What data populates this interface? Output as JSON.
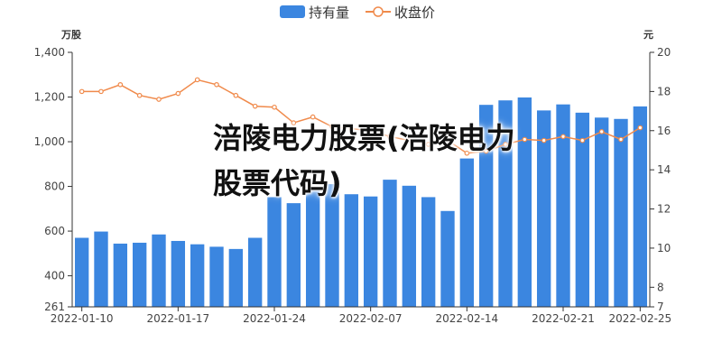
{
  "overlay_title": "涪陵电力股票(涪陵电力股票代码)",
  "chart_data": {
    "type": "bar",
    "legend_position": "top-center",
    "series": [
      {
        "name": "持有量",
        "type": "bar",
        "axis": "left",
        "color": "#3b86e0"
      },
      {
        "name": "收盘价",
        "type": "line",
        "axis": "right",
        "color": "#f08a4b"
      }
    ],
    "left_axis": {
      "unit": "万股",
      "min": 261,
      "max": 1400,
      "ticks": [
        261,
        400,
        600,
        800,
        1000,
        1200,
        1400
      ],
      "tick_labels": [
        "261",
        "400",
        "600",
        "800",
        "1,000",
        "1,200",
        "1,400"
      ]
    },
    "right_axis": {
      "unit": "元",
      "min": 7,
      "max": 20,
      "ticks": [
        7,
        8,
        10,
        12,
        14,
        16,
        18,
        20
      ],
      "tick_labels": [
        "7",
        "8",
        "10",
        "12",
        "14",
        "16",
        "18",
        "20"
      ]
    },
    "x_tick_labels": [
      "2022-01-10",
      "2022-01-17",
      "2022-01-24",
      "2022-02-07",
      "2022-02-14",
      "2022-02-21",
      "2022-02-25"
    ],
    "x_tick_dates": [
      "2022-01-10",
      "2022-01-17",
      "2022-01-24",
      "2022-02-07",
      "2022-02-14",
      "2022-02-21",
      "2022-02-25"
    ],
    "dates": [
      "2022-01-10",
      "2022-01-11",
      "2022-01-12",
      "2022-01-13",
      "2022-01-14",
      "2022-01-17",
      "2022-01-18",
      "2022-01-19",
      "2022-01-20",
      "2022-01-21",
      "2022-01-24",
      "2022-01-25",
      "2022-01-26",
      "2022-01-27",
      "2022-01-28",
      "2022-02-07",
      "2022-02-08",
      "2022-02-09",
      "2022-02-10",
      "2022-02-11",
      "2022-02-14",
      "2022-02-15",
      "2022-02-16",
      "2022-02-17",
      "2022-02-18",
      "2022-02-21",
      "2022-02-22",
      "2022-02-23",
      "2022-02-24",
      "2022-02-25"
    ],
    "holdings": [
      570,
      598,
      544,
      548,
      585,
      556,
      541,
      530,
      520,
      570,
      752,
      725,
      790,
      810,
      765,
      755,
      830,
      803,
      752,
      690,
      925,
      1165,
      1185,
      1198,
      1140,
      1167,
      1130,
      1108,
      1102,
      1158
    ],
    "close_price": [
      18.0,
      18.0,
      18.35,
      17.8,
      17.6,
      17.9,
      18.6,
      18.35,
      17.8,
      17.25,
      17.2,
      16.4,
      16.7,
      16.2,
      16.1,
      16.0,
      15.7,
      15.5,
      15.3,
      15.5,
      14.85,
      14.95,
      15.3,
      15.55,
      15.5,
      15.7,
      15.5,
      15.95,
      15.55,
      16.15
    ]
  }
}
